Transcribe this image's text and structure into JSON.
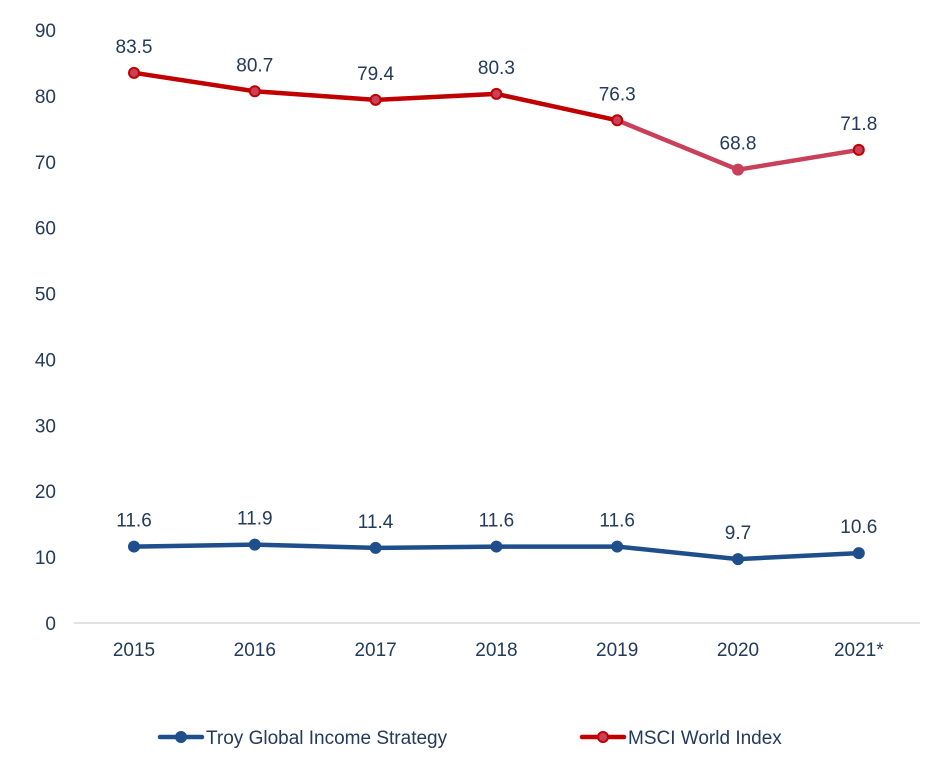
{
  "chart_data": {
    "type": "line",
    "title": "",
    "xlabel": "",
    "ylabel": "",
    "categories": [
      "2015",
      "2016",
      "2017",
      "2018",
      "2019",
      "2020",
      "2021*"
    ],
    "ylim": [
      0,
      90
    ],
    "yticks": [
      "0",
      "10",
      "20",
      "30",
      "40",
      "50",
      "60",
      "70",
      "80",
      "90"
    ],
    "grid": false,
    "legend_position": "bottom",
    "series": [
      {
        "name": "Troy Global Income Strategy",
        "values": [
          11.6,
          11.9,
          11.4,
          11.6,
          11.6,
          9.7,
          10.6
        ],
        "labels": [
          "11.6",
          "11.9",
          "11.4",
          "11.6",
          "11.6",
          "9.7",
          "10.6"
        ],
        "color": "#1f4e8c",
        "segment_colors": [
          "#1f4e8c",
          "#1f4e8c",
          "#1f4e8c",
          "#1f4e8c",
          "#1f4e8c",
          "#1f4e8c"
        ],
        "marker_fill": "#1f4e8c",
        "marker_stroke": "#1f4e8c"
      },
      {
        "name": "MSCI World Index",
        "values": [
          83.5,
          80.7,
          79.4,
          80.3,
          76.3,
          68.8,
          71.8
        ],
        "labels": [
          "83.5",
          "80.7",
          "79.4",
          "80.3",
          "76.3",
          "68.8",
          "71.8"
        ],
        "color": "#c00000",
        "segment_colors": [
          "#c00000",
          "#c00000",
          "#c00000",
          "#c00000",
          "#c8405a",
          "#c8405a"
        ],
        "marker_fill": "#c8405a",
        "marker_stroke": "#c00000"
      }
    ]
  }
}
